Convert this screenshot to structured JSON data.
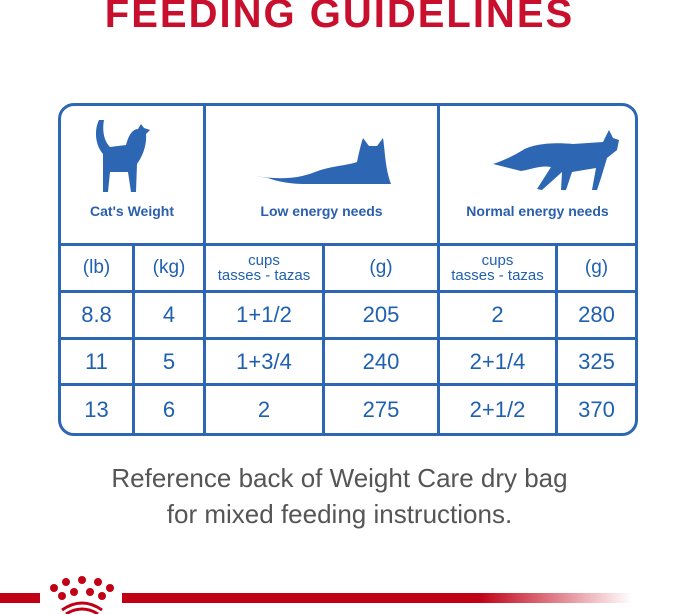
{
  "title": "FEEDING GUIDELINES",
  "headers": {
    "weight": "Cat's Weight",
    "low": "Low energy needs",
    "normal": "Normal energy needs"
  },
  "units": {
    "lb": "(lb)",
    "kg": "(kg)",
    "cups1": "cups",
    "cups2": "tasses - tazas",
    "g": "(g)"
  },
  "rows": [
    {
      "lb": "8.8",
      "kg": "4",
      "low_cups": "1+1/2",
      "low_g": "205",
      "normal_cups": "2",
      "normal_g": "280"
    },
    {
      "lb": "11",
      "kg": "5",
      "low_cups": "1+3/4",
      "low_g": "240",
      "normal_cups": "2+1/4",
      "normal_g": "325"
    },
    {
      "lb": "13",
      "kg": "6",
      "low_cups": "2",
      "low_g": "275",
      "normal_cups": "2+1/2",
      "normal_g": "370"
    }
  ],
  "note": {
    "line1": "Reference back of Weight Care dry bag",
    "line2": "for mixed feeding instructions."
  },
  "colors": {
    "brand_red": "#c8102e",
    "table_blue": "#2d66b3"
  },
  "logo": "Royal Canin crown"
}
